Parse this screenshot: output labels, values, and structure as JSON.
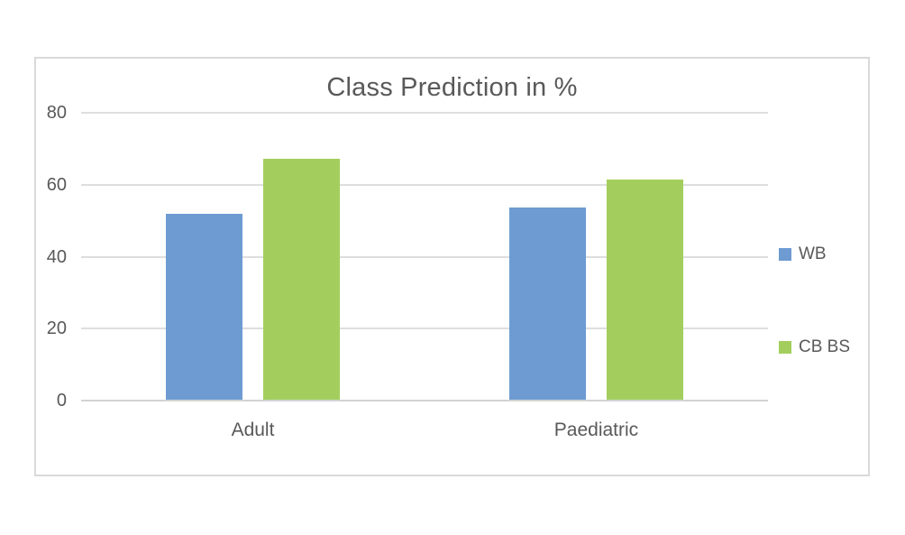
{
  "chart_data": {
    "type": "bar",
    "title": "Class Prediction in %",
    "categories": [
      "Adult",
      "Paediatric"
    ],
    "series": [
      {
        "name": "WB",
        "color": "#6D9BD2",
        "values": [
          52,
          53.7
        ]
      },
      {
        "name": "CB BS",
        "color": "#A3CE5D",
        "values": [
          67.3,
          61.5
        ]
      }
    ],
    "xlabel": "",
    "ylabel": "",
    "ylim": [
      0,
      80
    ],
    "yticks": [
      0,
      20,
      40,
      60,
      80
    ],
    "grid": true,
    "legend_position": "right"
  },
  "styles": {
    "text_color": "#595959",
    "gridline_color": "#dedede",
    "axis_line_color": "#d3d3d3",
    "frame_border_color": "#d9d9d9",
    "background_color": "#ffffff"
  }
}
